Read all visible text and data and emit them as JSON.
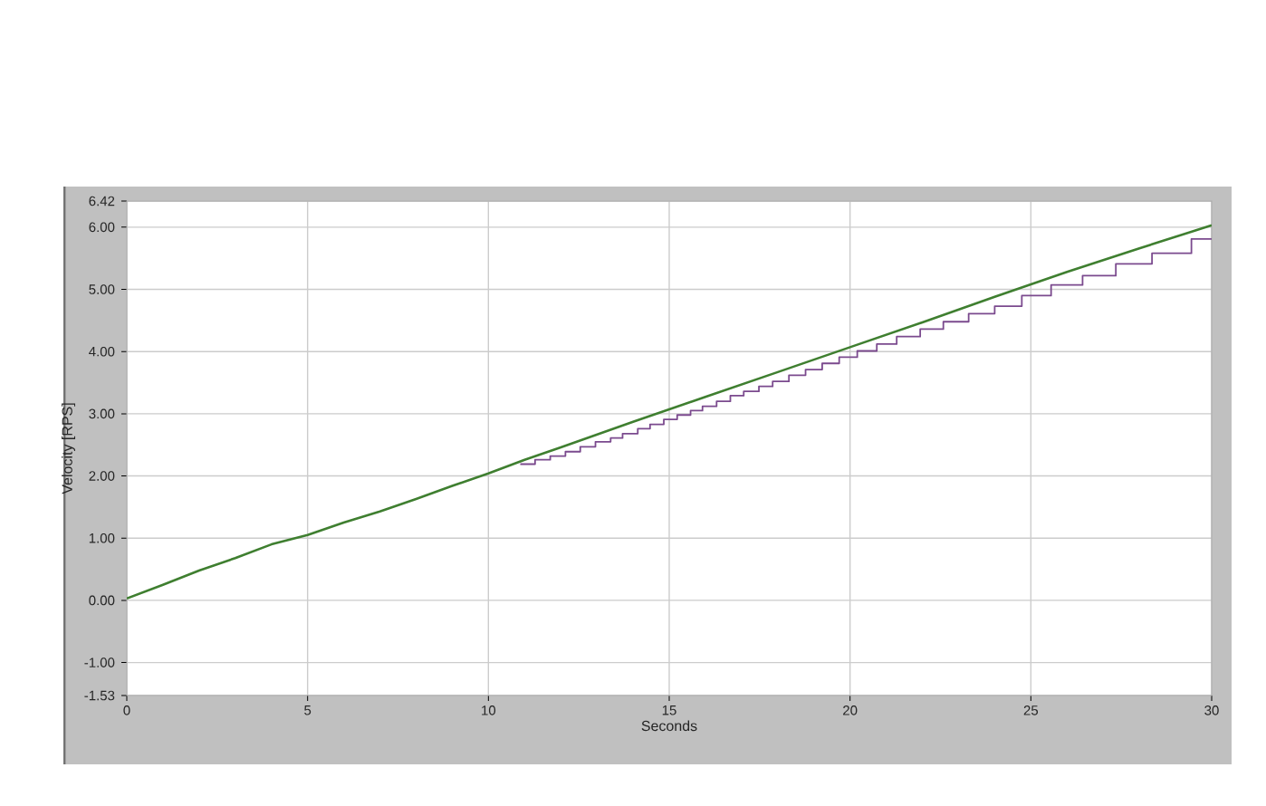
{
  "chart_data": {
    "type": "line",
    "xlabel": "Seconds",
    "ylabel": "Velocity [RPS]",
    "xlim": [
      0,
      30
    ],
    "ylim": [
      -1.53,
      6.42
    ],
    "xticks": [
      0,
      5,
      10,
      15,
      20,
      25,
      30
    ],
    "yticks": [
      {
        "value": -1.53,
        "label": "-1.53"
      },
      {
        "value": -1,
        "label": "-1.00"
      },
      {
        "value": 0,
        "label": "0.00"
      },
      {
        "value": 1,
        "label": "1.00"
      },
      {
        "value": 2,
        "label": "2.00"
      },
      {
        "value": 3,
        "label": "3.00"
      },
      {
        "value": 4,
        "label": "4.00"
      },
      {
        "value": 5,
        "label": "5.00"
      },
      {
        "value": 6,
        "label": "6.00"
      },
      {
        "value": 6.42,
        "label": "6.42"
      }
    ],
    "grid": true,
    "series": [
      {
        "type": "step",
        "color": "#7b4a8e",
        "x": [
          10.88,
          11.29,
          11.71,
          12.13,
          12.54,
          12.96,
          13.38,
          13.71,
          14.13,
          14.47,
          14.85,
          15.22,
          15.59,
          15.92,
          16.31,
          16.69,
          17.06,
          17.48,
          17.86,
          18.31,
          18.77,
          19.23,
          19.7,
          20.2,
          20.74,
          21.29,
          21.94,
          22.58,
          23.28,
          24.0,
          24.75,
          25.56,
          26.43,
          27.35,
          28.35,
          29.44,
          30
        ],
        "values": [
          2.19,
          2.26,
          2.32,
          2.39,
          2.47,
          2.55,
          2.61,
          2.68,
          2.76,
          2.83,
          2.91,
          2.98,
          3.05,
          3.12,
          3.2,
          3.29,
          3.36,
          3.44,
          3.52,
          3.62,
          3.71,
          3.81,
          3.91,
          4.01,
          4.12,
          4.24,
          4.36,
          4.48,
          4.61,
          4.73,
          4.9,
          5.07,
          5.22,
          5.41,
          5.58,
          5.81,
          5.81
        ]
      },
      {
        "color": "#3f7f30",
        "x": [
          0,
          1,
          2,
          3,
          4,
          5,
          6,
          7,
          8,
          9,
          10,
          11,
          12,
          14,
          16,
          18,
          20,
          22,
          24,
          26,
          28,
          30
        ],
        "values": [
          0.03,
          0.25,
          0.48,
          0.68,
          0.9,
          1.05,
          1.25,
          1.43,
          1.63,
          1.84,
          2.04,
          2.26,
          2.46,
          2.87,
          3.27,
          3.67,
          4.07,
          4.47,
          4.88,
          5.28,
          5.66,
          6.03
        ]
      }
    ]
  }
}
